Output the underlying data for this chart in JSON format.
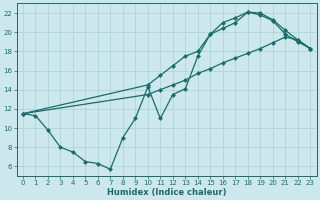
{
  "xlabel": "Humidex (Indice chaleur)",
  "background_color": "#cce8ec",
  "line_color": "#1a6b6b",
  "grid_color": "#aad0d5",
  "xlim": [
    -0.5,
    23.5
  ],
  "ylim": [
    5,
    23
  ],
  "xticks": [
    0,
    1,
    2,
    3,
    4,
    5,
    6,
    7,
    8,
    9,
    10,
    11,
    12,
    13,
    14,
    15,
    16,
    17,
    18,
    19,
    20,
    21,
    22,
    23
  ],
  "yticks": [
    6,
    8,
    10,
    12,
    14,
    16,
    18,
    20,
    22
  ],
  "line1_x": [
    0,
    1,
    2,
    3,
    4,
    5,
    6,
    7,
    8,
    9,
    10,
    11,
    12,
    13,
    14,
    15,
    16,
    17,
    18,
    19,
    20,
    21,
    22,
    23
  ],
  "line1_y": [
    11.5,
    11.3,
    9.8,
    8.0,
    7.5,
    6.5,
    6.3,
    5.7,
    9.0,
    11.0,
    14.3,
    11.0,
    13.5,
    14.1,
    17.5,
    19.8,
    20.4,
    21.0,
    22.1,
    22.0,
    21.3,
    20.2,
    19.2,
    18.3
  ],
  "line2_x": [
    0,
    10,
    11,
    12,
    13,
    14,
    15,
    16,
    17,
    18,
    19,
    20,
    21,
    22,
    23
  ],
  "line2_y": [
    11.5,
    13.5,
    14.0,
    14.5,
    15.0,
    15.7,
    16.2,
    16.8,
    17.3,
    17.8,
    18.3,
    18.9,
    19.5,
    19.2,
    18.3
  ],
  "line3_x": [
    0,
    10,
    11,
    12,
    13,
    14,
    15,
    16,
    17,
    18,
    19,
    20,
    21,
    22,
    23
  ],
  "line3_y": [
    11.5,
    14.5,
    15.5,
    16.5,
    17.5,
    18.0,
    19.8,
    21.0,
    21.5,
    22.1,
    21.8,
    21.2,
    19.8,
    19.0,
    18.3
  ],
  "markersize": 2.5,
  "linewidth": 0.9
}
